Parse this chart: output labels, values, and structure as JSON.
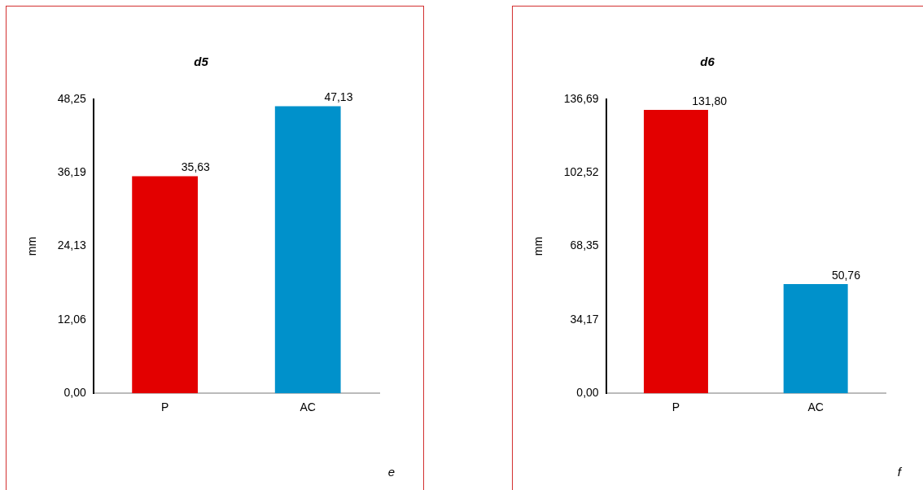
{
  "chart_data": [
    {
      "type": "bar",
      "title": "d5",
      "ylabel": "mm",
      "categories": [
        "P",
        "AC"
      ],
      "values": [
        35.63,
        47.13
      ],
      "colors": [
        "#e30000",
        "#0091cb"
      ],
      "ylim": [
        0,
        48.25
      ],
      "yticks": [
        {
          "value": 0,
          "label": "0,00"
        },
        {
          "value": 12.06,
          "label": "12,06"
        },
        {
          "value": 24.13,
          "label": "24,13"
        },
        {
          "value": 36.19,
          "label": "36,19"
        },
        {
          "value": 48.25,
          "label": "48,25"
        }
      ],
      "value_labels": [
        "35,63",
        "47,13"
      ],
      "annotations": [
        "e"
      ]
    },
    {
      "type": "bar",
      "title": "d6",
      "ylabel": "mm",
      "categories": [
        "P",
        "AC"
      ],
      "values": [
        131.8,
        50.76
      ],
      "colors": [
        "#e30000",
        "#0091cb"
      ],
      "ylim": [
        0,
        136.69
      ],
      "yticks": [
        {
          "value": 0,
          "label": "0,00"
        },
        {
          "value": 34.17,
          "label": "34,17"
        },
        {
          "value": 68.35,
          "label": "68,35"
        },
        {
          "value": 102.52,
          "label": "102,52"
        },
        {
          "value": 136.69,
          "label": "136,69"
        }
      ],
      "value_labels": [
        "131,80",
        "50,76"
      ],
      "annotations": [
        "f"
      ]
    }
  ]
}
